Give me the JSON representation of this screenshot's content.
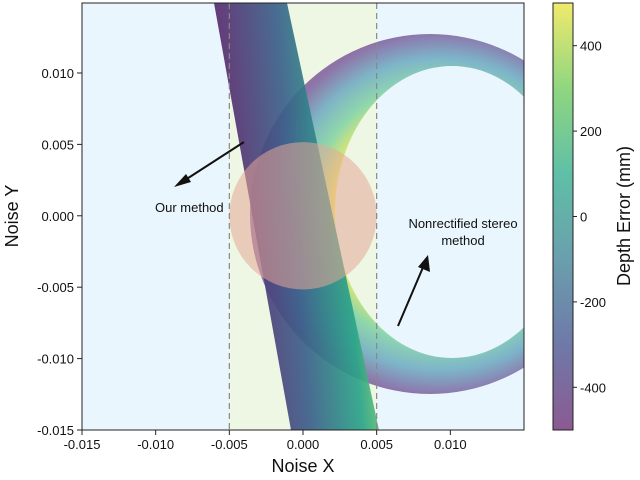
{
  "chart_data": {
    "type": "heatmap",
    "title": "",
    "xlabel": "Noise X",
    "ylabel": "Noise Y",
    "xlim": [
      -0.015,
      0.015
    ],
    "ylim": [
      -0.015,
      0.0149
    ],
    "xticks": [
      -0.015,
      -0.01,
      -0.005,
      0.0,
      0.005,
      0.01
    ],
    "xtick_labels": [
      "-0.015",
      "-0.010",
      "-0.005",
      "0.000",
      "0.005",
      "0.010"
    ],
    "yticks": [
      0.01,
      0.005,
      0.0,
      -0.005,
      -0.01,
      -0.015
    ],
    "ytick_labels": [
      "0.010",
      "0.005",
      "0.000",
      "-0.005",
      "-0.010",
      "-0.015"
    ],
    "grid": false,
    "shaded_band_x": [
      -0.005,
      0.005
    ],
    "dashed_lines_x": [
      -0.005,
      0.005
    ],
    "noise_circle": {
      "center": [
        0,
        0
      ],
      "radius": 0.005
    },
    "series": [
      {
        "name": "Our method",
        "shape": "diagonal band",
        "top_x": [
          -0.0058,
          -0.001
        ],
        "bottom_x": [
          -0.0008,
          0.0051
        ]
      },
      {
        "name": "Nonrectified stereo method",
        "shape": "ring arc",
        "center": [
          0.0087,
          0.0
        ],
        "outer_radius": 0.0122
      }
    ],
    "annotations": [
      {
        "text": "Our method",
        "arrow_from": [
          -0.0039,
          0.0052
        ],
        "arrow_to": [
          -0.0086,
          0.0021
        ]
      },
      {
        "text": "Nonrectified stereo",
        "text2": "method",
        "arrow_from": [
          0.0064,
          -0.0077
        ],
        "arrow_to": [
          0.0085,
          -0.0029
        ]
      }
    ],
    "colorbar": {
      "label": "Depth Error (mm)",
      "range": [
        -500,
        500
      ],
      "ticks": [
        400,
        200,
        0,
        -200,
        -400
      ],
      "tick_labels": [
        "400",
        "200",
        "0",
        "-200",
        "-400"
      ],
      "colormap": "viridis",
      "colors": [
        "#8b5a92",
        "#6f79a8",
        "#6a9fad",
        "#5fbfa6",
        "#90d680",
        "#f0ea6c"
      ]
    },
    "colors": {
      "background": "#eaf6fd",
      "band": "#eef6e4",
      "circle": "#e6bfb3"
    }
  }
}
